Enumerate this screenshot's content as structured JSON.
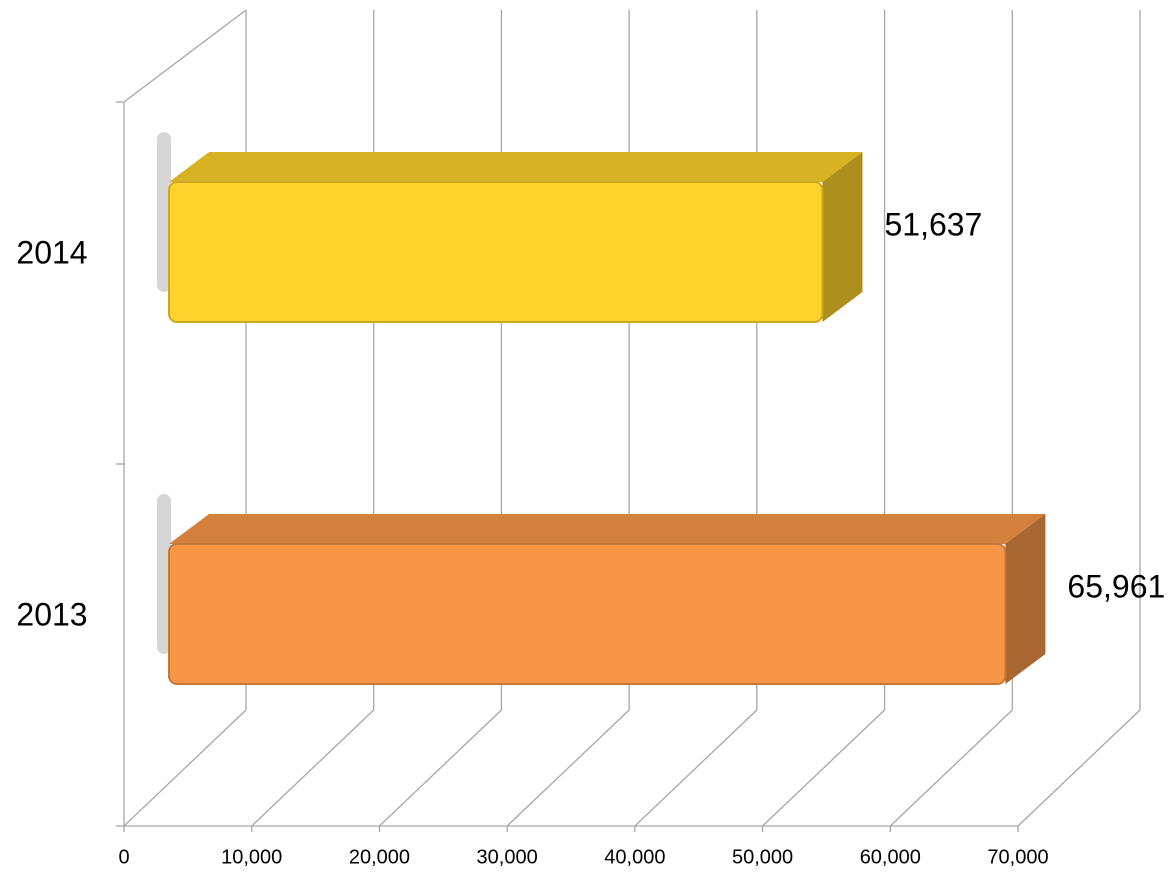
{
  "chart_data": {
    "type": "bar3d_horizontal",
    "categories": [
      "2014",
      "2013"
    ],
    "values": [
      51637,
      65961
    ],
    "value_labels": [
      "51,637",
      "65,961"
    ],
    "colors": [
      "#fdd22a",
      "#f79646"
    ],
    "xlim": [
      0,
      70000
    ],
    "xticks": [
      0,
      {
        "value": 10000,
        "label": "10,000"
      },
      {
        "value": 20000,
        "label": "20,000"
      },
      {
        "value": 30000,
        "label": "30,000"
      },
      {
        "value": 40000,
        "label": "40,000"
      },
      {
        "value": 50000,
        "label": "50,000"
      },
      {
        "value": 60000,
        "label": "60,000"
      },
      {
        "value": 70000,
        "label": "70,000"
      }
    ],
    "grid": true
  }
}
